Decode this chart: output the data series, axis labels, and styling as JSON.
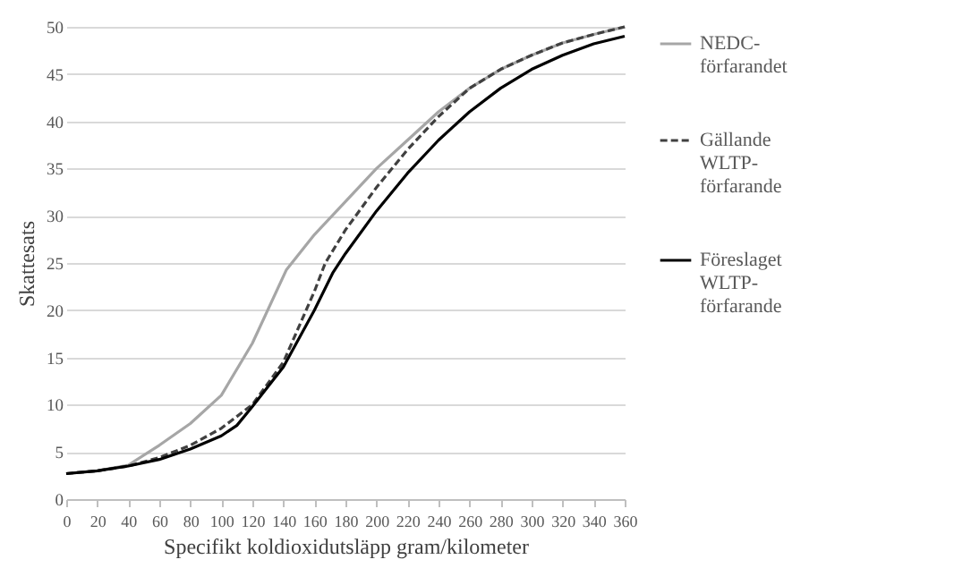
{
  "chart_data": {
    "type": "line",
    "xlabel": "Specifikt  koldioxidutsläpp gram/kilometer",
    "ylabel": "Skattesats",
    "xlim": [
      0,
      360
    ],
    "xticks": [
      0,
      20,
      40,
      60,
      80,
      100,
      120,
      140,
      160,
      180,
      200,
      220,
      240,
      260,
      280,
      300,
      320,
      340,
      360
    ],
    "ylim": [
      0,
      50
    ],
    "yticks": [
      0,
      5,
      10,
      15,
      20,
      25,
      30,
      35,
      40,
      45,
      50
    ],
    "grid": "y",
    "legend": "right",
    "series": [
      {
        "name": "NEDC-förfarandet",
        "color": "#a6a6a6",
        "line_style": "solid",
        "x": [
          0,
          20,
          40,
          60,
          80,
          100,
          120,
          142,
          160,
          180,
          200,
          220,
          240,
          260,
          280,
          300,
          320,
          340,
          360
        ],
        "values": [
          2.7,
          3.0,
          3.6,
          5.7,
          8,
          11,
          16.5,
          24.3,
          28,
          31.5,
          35,
          38,
          41,
          43.5,
          45.5,
          47,
          48.3,
          49.2,
          50
        ]
      },
      {
        "name": "Gällande WLTP-förfarande",
        "color": "#404040",
        "line_style": "dashed",
        "x": [
          0,
          20,
          40,
          60,
          80,
          100,
          120,
          140,
          160,
          167,
          180,
          200,
          220,
          240,
          260,
          280,
          300,
          320,
          340,
          360
        ],
        "values": [
          2.7,
          3.0,
          3.5,
          4.4,
          5.7,
          7.5,
          10,
          14.5,
          22,
          25,
          28.5,
          33,
          37,
          40.5,
          43.5,
          45.5,
          47,
          48.3,
          49.2,
          50
        ]
      },
      {
        "name": "Föreslaget WLTP-förfarande",
        "color": "#000000",
        "line_style": "solid",
        "x": [
          0,
          20,
          40,
          60,
          80,
          100,
          110,
          120,
          140,
          160,
          172,
          180,
          200,
          220,
          240,
          260,
          280,
          300,
          320,
          340,
          360
        ],
        "values": [
          2.7,
          3.0,
          3.5,
          4.2,
          5.3,
          6.7,
          7.8,
          9.8,
          14,
          20,
          24,
          26,
          30.5,
          34.5,
          38,
          41,
          43.5,
          45.5,
          47,
          48.2,
          49
        ]
      }
    ]
  }
}
